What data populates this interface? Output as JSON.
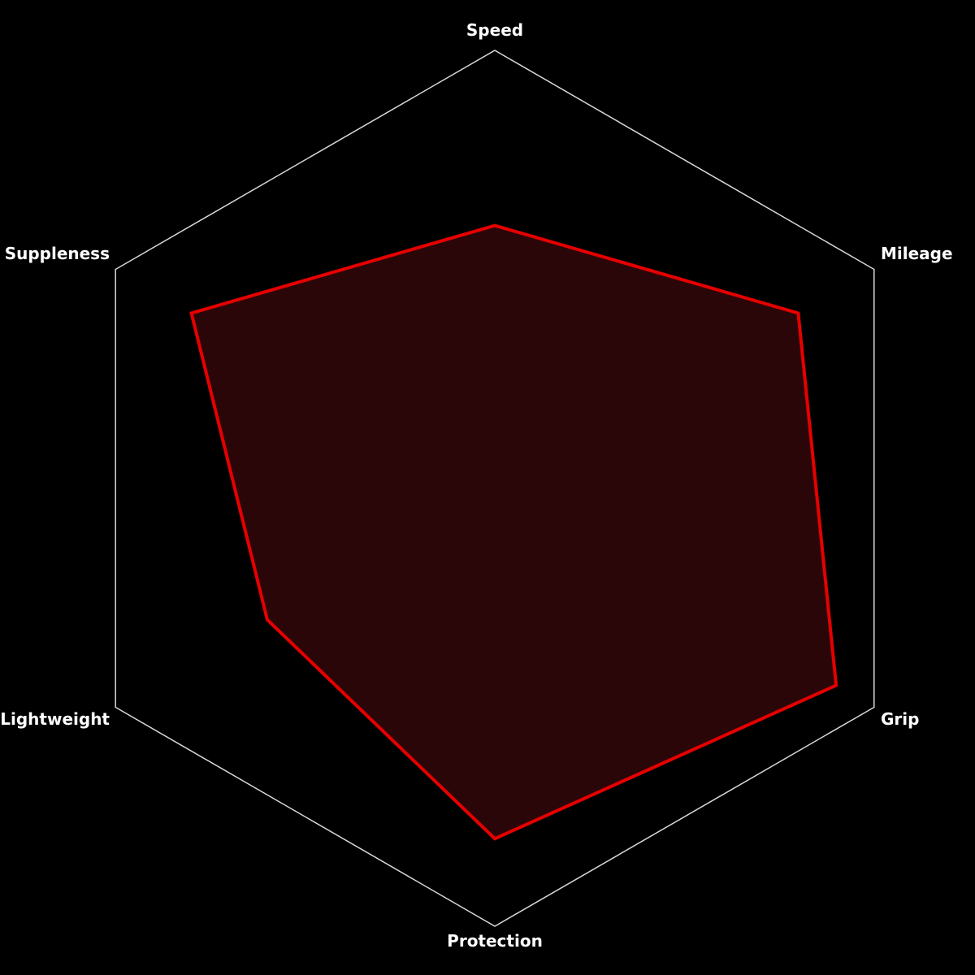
{
  "chart_data": {
    "type": "radar",
    "axes": [
      "Speed",
      "Mileage",
      "Grip",
      "Protection",
      "Lightweight",
      "Suppleness"
    ],
    "values": [
      60,
      80,
      90,
      80,
      60,
      80
    ],
    "range": [
      0,
      100
    ],
    "grid": "single outer hexagon",
    "legend": "none",
    "colors": {
      "background": "#000000",
      "grid": "#d9d9d9",
      "series_stroke": "#e60000",
      "series_fill": "#2b0609"
    }
  }
}
